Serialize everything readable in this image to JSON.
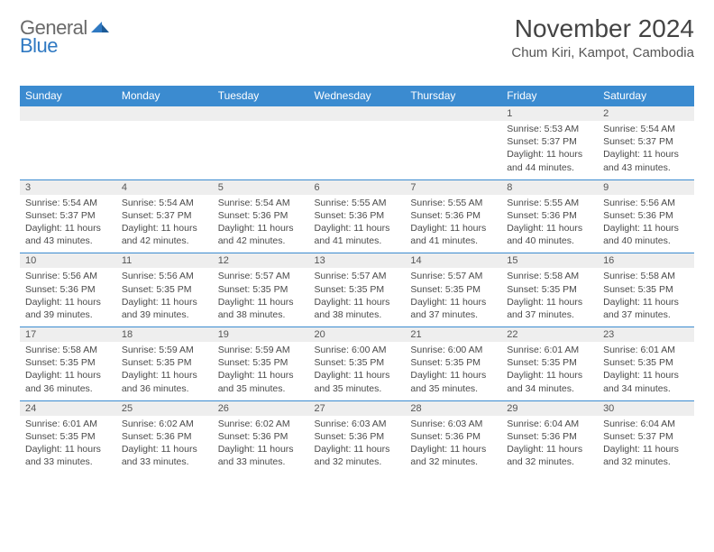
{
  "logo": {
    "general": "General",
    "blue": "Blue"
  },
  "title": "November 2024",
  "location": "Chum Kiri, Kampot, Cambodia",
  "colors": {
    "header_bg": "#3b8bd0",
    "header_text": "#ffffff",
    "daynum_bg": "#eeeeee",
    "border": "#3b8bd0",
    "text": "#4a4a4a",
    "logo_gray": "#6a6a6a",
    "logo_blue": "#2f79c2"
  },
  "typography": {
    "title_fontsize": 28,
    "location_fontsize": 15,
    "weekday_fontsize": 12,
    "daynum_fontsize": 11,
    "detail_fontsize": 10.5
  },
  "weekdays": [
    "Sunday",
    "Monday",
    "Tuesday",
    "Wednesday",
    "Thursday",
    "Friday",
    "Saturday"
  ],
  "weeks": [
    [
      null,
      null,
      null,
      null,
      null,
      {
        "n": "1",
        "sr": "Sunrise: 5:53 AM",
        "ss": "Sunset: 5:37 PM",
        "dl": "Daylight: 11 hours and 44 minutes."
      },
      {
        "n": "2",
        "sr": "Sunrise: 5:54 AM",
        "ss": "Sunset: 5:37 PM",
        "dl": "Daylight: 11 hours and 43 minutes."
      }
    ],
    [
      {
        "n": "3",
        "sr": "Sunrise: 5:54 AM",
        "ss": "Sunset: 5:37 PM",
        "dl": "Daylight: 11 hours and 43 minutes."
      },
      {
        "n": "4",
        "sr": "Sunrise: 5:54 AM",
        "ss": "Sunset: 5:37 PM",
        "dl": "Daylight: 11 hours and 42 minutes."
      },
      {
        "n": "5",
        "sr": "Sunrise: 5:54 AM",
        "ss": "Sunset: 5:36 PM",
        "dl": "Daylight: 11 hours and 42 minutes."
      },
      {
        "n": "6",
        "sr": "Sunrise: 5:55 AM",
        "ss": "Sunset: 5:36 PM",
        "dl": "Daylight: 11 hours and 41 minutes."
      },
      {
        "n": "7",
        "sr": "Sunrise: 5:55 AM",
        "ss": "Sunset: 5:36 PM",
        "dl": "Daylight: 11 hours and 41 minutes."
      },
      {
        "n": "8",
        "sr": "Sunrise: 5:55 AM",
        "ss": "Sunset: 5:36 PM",
        "dl": "Daylight: 11 hours and 40 minutes."
      },
      {
        "n": "9",
        "sr": "Sunrise: 5:56 AM",
        "ss": "Sunset: 5:36 PM",
        "dl": "Daylight: 11 hours and 40 minutes."
      }
    ],
    [
      {
        "n": "10",
        "sr": "Sunrise: 5:56 AM",
        "ss": "Sunset: 5:36 PM",
        "dl": "Daylight: 11 hours and 39 minutes."
      },
      {
        "n": "11",
        "sr": "Sunrise: 5:56 AM",
        "ss": "Sunset: 5:35 PM",
        "dl": "Daylight: 11 hours and 39 minutes."
      },
      {
        "n": "12",
        "sr": "Sunrise: 5:57 AM",
        "ss": "Sunset: 5:35 PM",
        "dl": "Daylight: 11 hours and 38 minutes."
      },
      {
        "n": "13",
        "sr": "Sunrise: 5:57 AM",
        "ss": "Sunset: 5:35 PM",
        "dl": "Daylight: 11 hours and 38 minutes."
      },
      {
        "n": "14",
        "sr": "Sunrise: 5:57 AM",
        "ss": "Sunset: 5:35 PM",
        "dl": "Daylight: 11 hours and 37 minutes."
      },
      {
        "n": "15",
        "sr": "Sunrise: 5:58 AM",
        "ss": "Sunset: 5:35 PM",
        "dl": "Daylight: 11 hours and 37 minutes."
      },
      {
        "n": "16",
        "sr": "Sunrise: 5:58 AM",
        "ss": "Sunset: 5:35 PM",
        "dl": "Daylight: 11 hours and 37 minutes."
      }
    ],
    [
      {
        "n": "17",
        "sr": "Sunrise: 5:58 AM",
        "ss": "Sunset: 5:35 PM",
        "dl": "Daylight: 11 hours and 36 minutes."
      },
      {
        "n": "18",
        "sr": "Sunrise: 5:59 AM",
        "ss": "Sunset: 5:35 PM",
        "dl": "Daylight: 11 hours and 36 minutes."
      },
      {
        "n": "19",
        "sr": "Sunrise: 5:59 AM",
        "ss": "Sunset: 5:35 PM",
        "dl": "Daylight: 11 hours and 35 minutes."
      },
      {
        "n": "20",
        "sr": "Sunrise: 6:00 AM",
        "ss": "Sunset: 5:35 PM",
        "dl": "Daylight: 11 hours and 35 minutes."
      },
      {
        "n": "21",
        "sr": "Sunrise: 6:00 AM",
        "ss": "Sunset: 5:35 PM",
        "dl": "Daylight: 11 hours and 35 minutes."
      },
      {
        "n": "22",
        "sr": "Sunrise: 6:01 AM",
        "ss": "Sunset: 5:35 PM",
        "dl": "Daylight: 11 hours and 34 minutes."
      },
      {
        "n": "23",
        "sr": "Sunrise: 6:01 AM",
        "ss": "Sunset: 5:35 PM",
        "dl": "Daylight: 11 hours and 34 minutes."
      }
    ],
    [
      {
        "n": "24",
        "sr": "Sunrise: 6:01 AM",
        "ss": "Sunset: 5:35 PM",
        "dl": "Daylight: 11 hours and 33 minutes."
      },
      {
        "n": "25",
        "sr": "Sunrise: 6:02 AM",
        "ss": "Sunset: 5:36 PM",
        "dl": "Daylight: 11 hours and 33 minutes."
      },
      {
        "n": "26",
        "sr": "Sunrise: 6:02 AM",
        "ss": "Sunset: 5:36 PM",
        "dl": "Daylight: 11 hours and 33 minutes."
      },
      {
        "n": "27",
        "sr": "Sunrise: 6:03 AM",
        "ss": "Sunset: 5:36 PM",
        "dl": "Daylight: 11 hours and 32 minutes."
      },
      {
        "n": "28",
        "sr": "Sunrise: 6:03 AM",
        "ss": "Sunset: 5:36 PM",
        "dl": "Daylight: 11 hours and 32 minutes."
      },
      {
        "n": "29",
        "sr": "Sunrise: 6:04 AM",
        "ss": "Sunset: 5:36 PM",
        "dl": "Daylight: 11 hours and 32 minutes."
      },
      {
        "n": "30",
        "sr": "Sunrise: 6:04 AM",
        "ss": "Sunset: 5:37 PM",
        "dl": "Daylight: 11 hours and 32 minutes."
      }
    ]
  ]
}
